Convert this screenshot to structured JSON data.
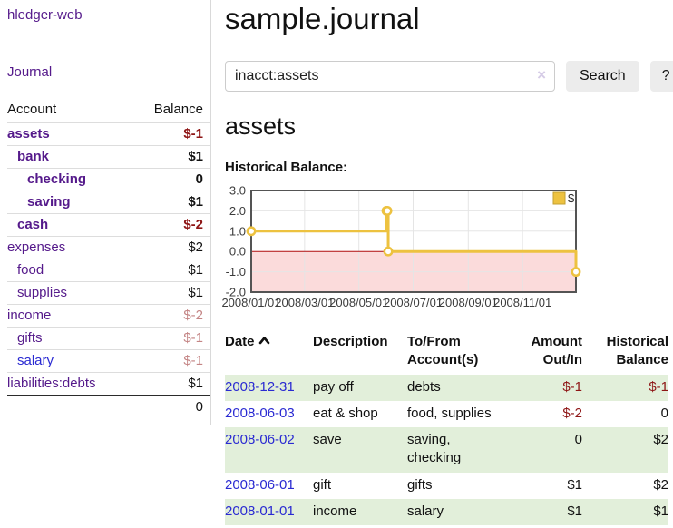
{
  "sidebar": {
    "brand": "hledger-web",
    "journal_label": "Journal",
    "accounts_table": {
      "headers": [
        "Account",
        "Balance"
      ],
      "accounts": [
        {
          "name": "assets",
          "depth": 0,
          "bold": true,
          "balance": "$-1"
        },
        {
          "name": "bank",
          "depth": 1,
          "bold": true,
          "balance": "$1"
        },
        {
          "name": "checking",
          "depth": 2,
          "bold": true,
          "balance": "0"
        },
        {
          "name": "saving",
          "depth": 2,
          "bold": true,
          "balance": "$1"
        },
        {
          "name": "cash",
          "depth": 1,
          "bold": true,
          "balance": "$-2"
        },
        {
          "name": "expenses",
          "depth": 0,
          "bold": false,
          "balance": "$2"
        },
        {
          "name": "food",
          "depth": 1,
          "bold": false,
          "balance": "$1"
        },
        {
          "name": "supplies",
          "depth": 1,
          "bold": false,
          "balance": "$1"
        },
        {
          "name": "income",
          "depth": 0,
          "bold": false,
          "balance": "$-2"
        },
        {
          "name": "gifts",
          "depth": 1,
          "bold": false,
          "balance": "$-1"
        },
        {
          "name": "salary",
          "depth": 1,
          "bold": false,
          "balance": "$-1",
          "unvisited": true
        },
        {
          "name": "liabilities:debts",
          "depth": 0,
          "bold": false,
          "balance": "$1"
        }
      ],
      "total": "0"
    }
  },
  "main": {
    "title": "sample.journal",
    "search": {
      "value": "inacct:assets",
      "clear_icon": "×",
      "search_label": "Search",
      "help_label": "?"
    },
    "account_heading": "assets",
    "chart_label": "Historical Balance:",
    "transactions": {
      "headers": {
        "date": "Date",
        "description": "Description",
        "tofrom": "To/From Account(s)",
        "amount": "Amount Out/In",
        "balance": "Historical Balance"
      },
      "rows": [
        {
          "date": "2008-12-31",
          "description": "pay off",
          "accounts": "debts",
          "amount": "$-1",
          "balance": "$-1"
        },
        {
          "date": "2008-06-03",
          "description": "eat & shop",
          "accounts": "food, supplies",
          "amount": "$-2",
          "balance": "0"
        },
        {
          "date": "2008-06-02",
          "description": "save",
          "accounts": "saving, checking",
          "amount": "0",
          "balance": "$2"
        },
        {
          "date": "2008-06-01",
          "description": "gift",
          "accounts": "gifts",
          "amount": "$1",
          "balance": "$2"
        },
        {
          "date": "2008-01-01",
          "description": "income",
          "accounts": "salary",
          "amount": "$1",
          "balance": "$1"
        }
      ]
    }
  },
  "chart_data": {
    "type": "line",
    "step": true,
    "title": "Historical Balance:",
    "series": [
      {
        "name": "$",
        "points": [
          [
            "2008-01-01",
            1
          ],
          [
            "2008-06-01",
            2
          ],
          [
            "2008-06-02",
            2
          ],
          [
            "2008-06-03",
            0
          ],
          [
            "2008-12-31",
            -1
          ]
        ]
      }
    ],
    "x_range": [
      "2008-01-01",
      "2008-12-31"
    ],
    "y_range": [
      -2,
      3
    ],
    "y_ticks": [
      3.0,
      2.0,
      1.0,
      0.0,
      -1.0,
      -2.0
    ],
    "x_ticks": [
      "2008/01/01",
      "2008/03/01",
      "2008/05/01",
      "2008/07/01",
      "2008/09/01",
      "2008/11/01"
    ],
    "legend_position": "top-right",
    "below_zero_shaded": true
  },
  "colors": {
    "link_purple": "#551a8b",
    "link_blue": "#2a2ad2",
    "negative": "#8e1515",
    "negative_dim": "#c48585",
    "row_stripe_green": "#e2efda",
    "chart_line": "#edc240",
    "chart_marker_fill": "#ffffff",
    "chart_fill_below_zero": "#fbdbdb",
    "zero_line": "#b01010",
    "chart_border": "#545454",
    "grid_line": "#e5e5e5",
    "button_bg": "#ececec"
  }
}
